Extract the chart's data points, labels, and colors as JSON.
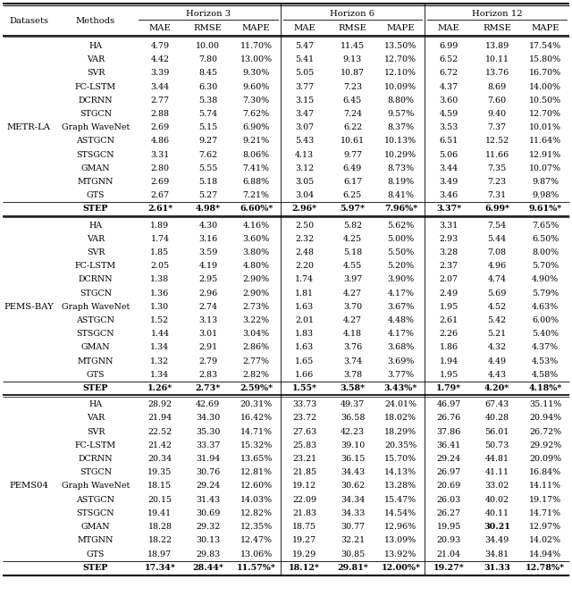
{
  "col_groups": [
    "Horizon 3",
    "Horizon 6",
    "Horizon 12"
  ],
  "sub_cols": [
    "MAE",
    "RMSE",
    "MAPE"
  ],
  "datasets": [
    "METR-LA",
    "PEMS-BAY",
    "PEMS04"
  ],
  "methods": [
    "HA",
    "VAR",
    "SVR",
    "FC-LSTM",
    "DCRNN",
    "STGCN",
    "Graph WaveNet",
    "ASTGCN",
    "STSGCN",
    "GMAN",
    "MTGNN",
    "GTS",
    "STEP"
  ],
  "data": {
    "METR-LA": [
      [
        "4.79",
        "10.00",
        "11.70%",
        "5.47",
        "11.45",
        "13.50%",
        "6.99",
        "13.89",
        "17.54%"
      ],
      [
        "4.42",
        "7.80",
        "13.00%",
        "5.41",
        "9.13",
        "12.70%",
        "6.52",
        "10.11",
        "15.80%"
      ],
      [
        "3.39",
        "8.45",
        "9.30%",
        "5.05",
        "10.87",
        "12.10%",
        "6.72",
        "13.76",
        "16.70%"
      ],
      [
        "3.44",
        "6.30",
        "9.60%",
        "3.77",
        "7.23",
        "10.09%",
        "4.37",
        "8.69",
        "14.00%"
      ],
      [
        "2.77",
        "5.38",
        "7.30%",
        "3.15",
        "6.45",
        "8.80%",
        "3.60",
        "7.60",
        "10.50%"
      ],
      [
        "2.88",
        "5.74",
        "7.62%",
        "3.47",
        "7.24",
        "9.57%",
        "4.59",
        "9.40",
        "12.70%"
      ],
      [
        "2.69",
        "5.15",
        "6.90%",
        "3.07",
        "6.22",
        "8.37%",
        "3.53",
        "7.37",
        "10.01%"
      ],
      [
        "4.86",
        "9.27",
        "9.21%",
        "5.43",
        "10.61",
        "10.13%",
        "6.51",
        "12.52",
        "11.64%"
      ],
      [
        "3.31",
        "7.62",
        "8.06%",
        "4.13",
        "9.77",
        "10.29%",
        "5.06",
        "11.66",
        "12.91%"
      ],
      [
        "2.80",
        "5.55",
        "7.41%",
        "3.12",
        "6.49",
        "8.73%",
        "3.44",
        "7.35",
        "10.07%"
      ],
      [
        "2.69",
        "5.18",
        "6.88%",
        "3.05",
        "6.17",
        "8.19%",
        "3.49",
        "7.23",
        "9.87%"
      ],
      [
        "2.67",
        "5.27",
        "7.21%",
        "3.04",
        "6.25",
        "8.41%",
        "3.46",
        "7.31",
        "9.98%"
      ],
      [
        "2.61*",
        "4.98*",
        "6.60%*",
        "2.96*",
        "5.97*",
        "7.96%*",
        "3.37*",
        "6.99*",
        "9.61%*"
      ]
    ],
    "PEMS-BAY": [
      [
        "1.89",
        "4.30",
        "4.16%",
        "2.50",
        "5.82",
        "5.62%",
        "3.31",
        "7.54",
        "7.65%"
      ],
      [
        "1.74",
        "3.16",
        "3.60%",
        "2.32",
        "4.25",
        "5.00%",
        "2.93",
        "5.44",
        "6.50%"
      ],
      [
        "1.85",
        "3.59",
        "3.80%",
        "2.48",
        "5.18",
        "5.50%",
        "3.28",
        "7.08",
        "8.00%"
      ],
      [
        "2.05",
        "4.19",
        "4.80%",
        "2.20",
        "4.55",
        "5.20%",
        "2.37",
        "4.96",
        "5.70%"
      ],
      [
        "1.38",
        "2.95",
        "2.90%",
        "1.74",
        "3.97",
        "3.90%",
        "2.07",
        "4.74",
        "4.90%"
      ],
      [
        "1.36",
        "2.96",
        "2.90%",
        "1.81",
        "4.27",
        "4.17%",
        "2.49",
        "5.69",
        "5.79%"
      ],
      [
        "1.30",
        "2.74",
        "2.73%",
        "1.63",
        "3.70",
        "3.67%",
        "1.95",
        "4.52",
        "4.63%"
      ],
      [
        "1.52",
        "3.13",
        "3.22%",
        "2.01",
        "4.27",
        "4.48%",
        "2.61",
        "5.42",
        "6.00%"
      ],
      [
        "1.44",
        "3.01",
        "3.04%",
        "1.83",
        "4.18",
        "4.17%",
        "2.26",
        "5.21",
        "5.40%"
      ],
      [
        "1.34",
        "2.91",
        "2.86%",
        "1.63",
        "3.76",
        "3.68%",
        "1.86",
        "4.32",
        "4.37%"
      ],
      [
        "1.32",
        "2.79",
        "2.77%",
        "1.65",
        "3.74",
        "3.69%",
        "1.94",
        "4.49",
        "4.53%"
      ],
      [
        "1.34",
        "2.83",
        "2.82%",
        "1.66",
        "3.78",
        "3.77%",
        "1.95",
        "4.43",
        "4.58%"
      ],
      [
        "1.26*",
        "2.73*",
        "2.59%*",
        "1.55*",
        "3.58*",
        "3.43%*",
        "1.79*",
        "4.20*",
        "4.18%*"
      ]
    ],
    "PEMS04": [
      [
        "28.92",
        "42.69",
        "20.31%",
        "33.73",
        "49.37",
        "24.01%",
        "46.97",
        "67.43",
        "35.11%"
      ],
      [
        "21.94",
        "34.30",
        "16.42%",
        "23.72",
        "36.58",
        "18.02%",
        "26.76",
        "40.28",
        "20.94%"
      ],
      [
        "22.52",
        "35.30",
        "14.71%",
        "27.63",
        "42.23",
        "18.29%",
        "37.86",
        "56.01",
        "26.72%"
      ],
      [
        "21.42",
        "33.37",
        "15.32%",
        "25.83",
        "39.10",
        "20.35%",
        "36.41",
        "50.73",
        "29.92%"
      ],
      [
        "20.34",
        "31.94",
        "13.65%",
        "23.21",
        "36.15",
        "15.70%",
        "29.24",
        "44.81",
        "20.09%"
      ],
      [
        "19.35",
        "30.76",
        "12.81%",
        "21.85",
        "34.43",
        "14.13%",
        "26.97",
        "41.11",
        "16.84%"
      ],
      [
        "18.15",
        "29.24",
        "12.60%",
        "19.12",
        "30.62",
        "13.28%",
        "20.69",
        "33.02",
        "14.11%"
      ],
      [
        "20.15",
        "31.43",
        "14.03%",
        "22.09",
        "34.34",
        "15.47%",
        "26.03",
        "40.02",
        "19.17%"
      ],
      [
        "19.41",
        "30.69",
        "12.82%",
        "21.83",
        "34.33",
        "14.54%",
        "26.27",
        "40.11",
        "14.71%"
      ],
      [
        "18.28",
        "29.32",
        "12.35%",
        "18.75",
        "30.77",
        "12.96%",
        "19.95",
        "30.21",
        "12.97%"
      ],
      [
        "18.22",
        "30.13",
        "12.47%",
        "19.27",
        "32.21",
        "13.09%",
        "20.93",
        "34.49",
        "14.02%"
      ],
      [
        "18.97",
        "29.83",
        "13.06%",
        "19.29",
        "30.85",
        "13.92%",
        "21.04",
        "34.81",
        "14.94%"
      ],
      [
        "17.34*",
        "28.44*",
        "11.57%*",
        "18.12*",
        "29.81*",
        "12.00%*",
        "19.27*",
        "31.33",
        "12.78%*"
      ]
    ]
  },
  "bold_special": [
    [
      2,
      9,
      7
    ]
  ]
}
